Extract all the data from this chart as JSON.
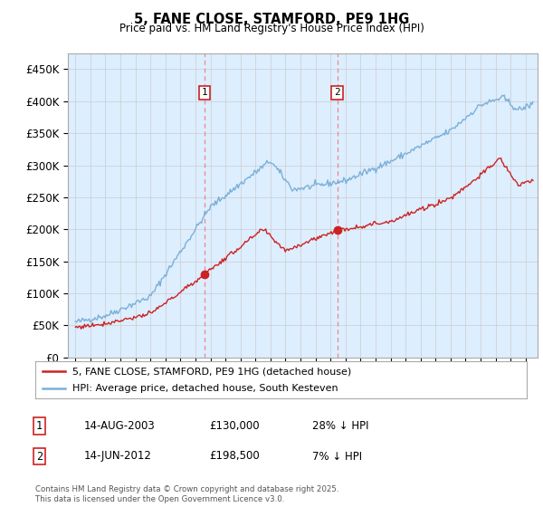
{
  "title": "5, FANE CLOSE, STAMFORD, PE9 1HG",
  "subtitle": "Price paid vs. HM Land Registry's House Price Index (HPI)",
  "ylabel_ticks": [
    "£0",
    "£50K",
    "£100K",
    "£150K",
    "£200K",
    "£250K",
    "£300K",
    "£350K",
    "£400K",
    "£450K"
  ],
  "ytick_values": [
    0,
    50000,
    100000,
    150000,
    200000,
    250000,
    300000,
    350000,
    400000,
    450000
  ],
  "ylim": [
    0,
    475000
  ],
  "xlim_start": 1994.5,
  "xlim_end": 2025.8,
  "background_color": "#ddeeff",
  "sale1": {
    "date_num": 2003.62,
    "price": 130000,
    "label": "1"
  },
  "sale2": {
    "date_num": 2012.45,
    "price": 198500,
    "label": "2"
  },
  "vline1_x": 2003.62,
  "vline2_x": 2012.45,
  "vline_color": "#ee8888",
  "legend_line1_label": "5, FANE CLOSE, STAMFORD, PE9 1HG (detached house)",
  "legend_line2_label": "HPI: Average price, detached house, South Kesteven",
  "table_row1": [
    "1",
    "14-AUG-2003",
    "£130,000",
    "28% ↓ HPI"
  ],
  "table_row2": [
    "2",
    "14-JUN-2012",
    "£198,500",
    "7% ↓ HPI"
  ],
  "footer": "Contains HM Land Registry data © Crown copyright and database right 2025.\nThis data is licensed under the Open Government Licence v3.0.",
  "hpi_color": "#7ab0d8",
  "sold_color": "#cc2222",
  "grid_color": "#cccccc"
}
